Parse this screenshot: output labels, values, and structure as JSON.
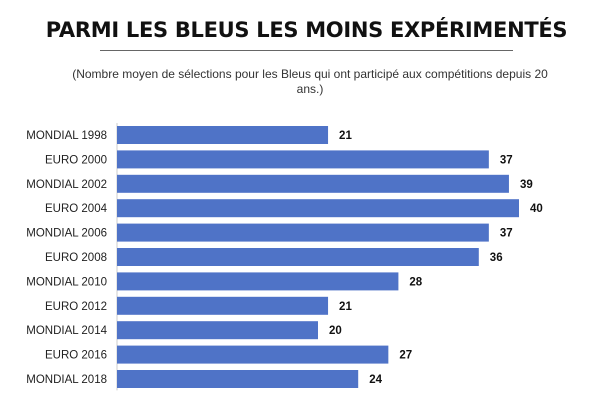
{
  "title": "PARMI LES BLEUS LES MOINS EXPÉRIMENTÉS",
  "subtitle": "(Nombre moyen de sélections pour les Bleus qui ont participé aux compétitions depuis 20 ans.)",
  "chart_data": {
    "type": "bar",
    "orientation": "horizontal",
    "categories": [
      "MONDIAL 1998",
      "EURO 2000",
      "MONDIAL 2002",
      "EURO 2004",
      "MONDIAL 2006",
      "EURO 2008",
      "MONDIAL 2010",
      "EURO 2012",
      "MONDIAL 2014",
      "EURO 2016",
      "MONDIAL 2018"
    ],
    "values": [
      21,
      37,
      39,
      40,
      37,
      36,
      28,
      21,
      20,
      27,
      24
    ],
    "xlim": [
      0,
      40
    ],
    "grid": false,
    "legend": "none",
    "bar_color": "#4f73c7"
  }
}
